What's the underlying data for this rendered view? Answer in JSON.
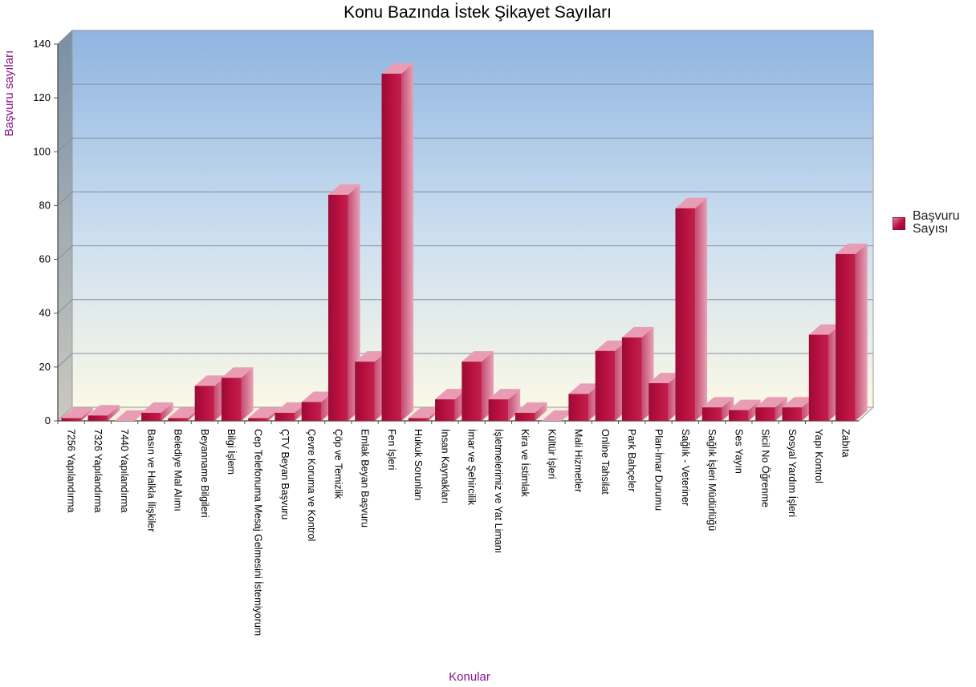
{
  "chart_data": {
    "type": "bar",
    "title": "Konu Bazında İstek Şikayet Sayıları",
    "xlabel": "Konular",
    "ylabel": "Başvuru sayıları",
    "ylim": [
      0,
      140
    ],
    "yticks": [
      0,
      20,
      40,
      60,
      80,
      100,
      120,
      140
    ],
    "grid": true,
    "legend_position": "right",
    "categories": [
      "7256 Yapılandırma",
      "7326 Yapılandırma",
      "7440 Yapılandırma",
      "Basın ve Halkla İlişkiler",
      "Belediye Mal Alımı",
      "Beyanname Bilgileri",
      "Bilgi İşlem",
      "Cep Telefonuma Mesaj Gelmesini İstemiyorum",
      "ÇTV Beyan Başvuru",
      "Çevre Koruma ve Kontrol",
      "Çöp ve Temizlik",
      "Emlak Beyan Başvuru",
      "Fen İşleri",
      "Hukuk Sorunları",
      "İnsan Kaynakları",
      "İmar ve Şehircilik",
      "İşletmelerimiz ve Yat Limanı",
      "Kira ve İstimlak",
      "Kültür İşleri",
      "Mali Hizmetler",
      "Online Tahsilat",
      "Park Bahçeler",
      "Plan-İmar Durumu",
      "Sağlık - Veteriner",
      "Sağlık İşleri Müdürlüğü",
      "Ses Yayın",
      "Sicil No Öğrenme",
      "Sosyal Yardım İşleri",
      "Yapı Kontrol",
      "Zabıta"
    ],
    "series": [
      {
        "name": "Başvuru Sayısı",
        "values": [
          1,
          2,
          0,
          3,
          1,
          13,
          16,
          1,
          3,
          7,
          84,
          22,
          129,
          1,
          8,
          22,
          8,
          3,
          0,
          10,
          26,
          31,
          14,
          79,
          5,
          4,
          5,
          5,
          32,
          62
        ]
      }
    ]
  },
  "colors": {
    "bar_front": "#b8103f",
    "bar_side": "#e2809e",
    "bar_top": "#e89db4",
    "wall_top": "#8fb5e0",
    "wall_bottom": "#fbf8e6",
    "title_color": "#8b0f86"
  }
}
